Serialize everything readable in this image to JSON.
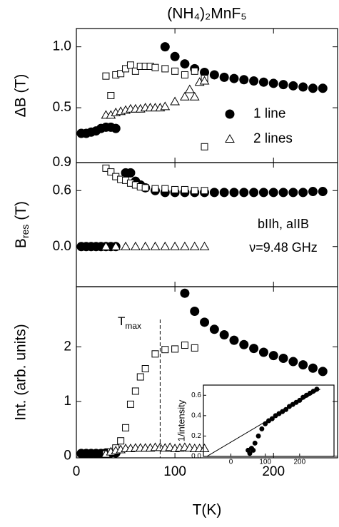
{
  "chart_data": [
    {
      "type": "scatter",
      "title": "(NH₄)₂MnF₅",
      "ylabel": "ΔB (T)",
      "xlim": [
        0,
        265
      ],
      "xticks": [
        0,
        100,
        200
      ],
      "ylim": [
        0.05,
        1.15
      ],
      "yticks": [
        0.5,
        {
          "value": 1.0,
          "label": "1.0"
        }
      ],
      "legend": "right",
      "series": [
        {
          "name": "1 line",
          "marker": "circle",
          "filled": true,
          "color": "#000000",
          "x": [
            5,
            10,
            15,
            20,
            25,
            30,
            35,
            40,
            90,
            100,
            110,
            120,
            130,
            140,
            150,
            160,
            170,
            180,
            190,
            200,
            210,
            220,
            230,
            240,
            250
          ],
          "values": [
            0.29,
            0.29,
            0.3,
            0.31,
            0.33,
            0.34,
            0.34,
            0.33,
            1.0,
            0.92,
            0.86,
            0.82,
            0.79,
            0.77,
            0.75,
            0.74,
            0.73,
            0.72,
            0.71,
            0.7,
            0.69,
            0.68,
            0.67,
            0.66,
            0.66
          ]
        },
        {
          "marker": "square",
          "filled": false,
          "color": "#000000",
          "x": [
            30,
            35,
            40,
            45,
            50,
            55,
            60,
            65,
            70,
            75,
            80,
            90,
            100,
            110,
            120,
            130,
            130
          ],
          "values": [
            0.76,
            0.6,
            0.77,
            0.78,
            0.82,
            0.85,
            0.8,
            0.84,
            0.84,
            0.84,
            0.83,
            0.82,
            0.8,
            0.77,
            0.8,
            0.74,
            0.18
          ]
        },
        {
          "name": "2 lines",
          "marker": "triangle",
          "filled": false,
          "color": "#000000",
          "x": [
            30,
            35,
            40,
            45,
            50,
            55,
            60,
            65,
            70,
            75,
            80,
            85,
            90,
            100,
            110,
            115,
            120,
            125,
            130
          ],
          "values": [
            0.44,
            0.44,
            0.46,
            0.47,
            0.48,
            0.49,
            0.49,
            0.49,
            0.5,
            0.5,
            0.5,
            0.5,
            0.51,
            0.55,
            0.59,
            0.65,
            0.59,
            0.71,
            0.72
          ]
        }
      ]
    },
    {
      "type": "scatter",
      "ylabel": {
        "text": "B",
        "sub": "res",
        "unit": " (T)"
      },
      "annotations": [
        "bIIh, aIIB",
        "ν=9.48 GHz"
      ],
      "xlim": [
        0,
        265
      ],
      "xticks": [
        0,
        100,
        200
      ],
      "ylim": [
        -0.43,
        0.9
      ],
      "yticks": [
        {
          "value": 0,
          "label": "0.0"
        },
        0.6,
        0.9
      ],
      "series": [
        {
          "marker": "circle",
          "filled": true,
          "color": "#000000",
          "x": [
            5,
            10,
            15,
            20,
            25,
            30,
            35,
            40,
            50,
            55,
            60,
            65,
            70,
            80,
            90,
            100,
            110,
            120,
            130,
            140,
            150,
            160,
            170,
            180,
            190,
            200,
            210,
            220,
            230,
            240,
            250
          ],
          "values": [
            0,
            0,
            0,
            0,
            0,
            0,
            0,
            0,
            0.79,
            0.79,
            0.7,
            0.66,
            0.63,
            0.6,
            0.58,
            0.58,
            0.58,
            0.58,
            0.58,
            0.58,
            0.58,
            0.58,
            0.58,
            0.58,
            0.58,
            0.58,
            0.58,
            0.58,
            0.58,
            0.59,
            0.59
          ]
        },
        {
          "marker": "square",
          "filled": false,
          "color": "#000000",
          "x": [
            30,
            35,
            40,
            45,
            50,
            55,
            60,
            65,
            70,
            80,
            90,
            100,
            110,
            120,
            130
          ],
          "values": [
            0.84,
            0.8,
            0.75,
            0.72,
            0.71,
            0.68,
            0.66,
            0.64,
            0.63,
            0.62,
            0.62,
            0.61,
            0.61,
            0.6,
            0.6
          ]
        },
        {
          "marker": "triangle",
          "filled": false,
          "color": "#000000",
          "x": [
            30,
            40,
            50,
            60,
            70,
            80,
            90,
            100,
            110,
            120,
            130
          ],
          "values": [
            0,
            0,
            0,
            0,
            0,
            0,
            0,
            0,
            0,
            0,
            0
          ]
        }
      ]
    },
    {
      "type": "scatter",
      "ylabel": "Int. (arb. units)",
      "xlabel": "T(K)",
      "annotation": {
        "text": "T",
        "sub": "max",
        "x": 85
      },
      "xlim": [
        0,
        265
      ],
      "xticks": [
        0,
        100,
        200
      ],
      "ylim": [
        -0.03,
        3.1
      ],
      "yticks": [
        0,
        1,
        2
      ],
      "series": [
        {
          "marker": "circle",
          "filled": true,
          "color": "#000000",
          "x": [
            5,
            10,
            15,
            20,
            25,
            30,
            35,
            40,
            110,
            120,
            130,
            140,
            150,
            160,
            170,
            180,
            190,
            200,
            210,
            220,
            230,
            240,
            250
          ],
          "values": [
            0.05,
            0.05,
            0.05,
            0.05,
            0.05,
            0.06,
            0.06,
            0.06,
            2.98,
            2.65,
            2.45,
            2.32,
            2.22,
            2.12,
            2.04,
            1.97,
            1.9,
            1.84,
            1.79,
            1.73,
            1.67,
            1.61,
            1.55
          ]
        },
        {
          "marker": "square",
          "filled": false,
          "color": "#000000",
          "x": [
            30,
            35,
            40,
            45,
            50,
            55,
            60,
            65,
            70,
            80,
            90,
            100,
            110,
            120
          ],
          "values": [
            0.04,
            0.08,
            0.15,
            0.28,
            0.52,
            0.95,
            1.19,
            1.45,
            1.6,
            1.87,
            1.95,
            1.96,
            2.03,
            1.98
          ]
        },
        {
          "marker": "triangle",
          "filled": false,
          "color": "#000000",
          "x": [
            30,
            35,
            40,
            45,
            50,
            55,
            60,
            65,
            70,
            75,
            80,
            85,
            90,
            95,
            100,
            105,
            110,
            115,
            120,
            125,
            130
          ],
          "values": [
            0.04,
            0.08,
            0.1,
            0.12,
            0.14,
            0.14,
            0.15,
            0.15,
            0.15,
            0.15,
            0.16,
            0.16,
            0.15,
            0.16,
            0.14,
            0.15,
            0.16,
            0.15,
            0.14,
            0.14,
            0.14
          ]
        }
      ]
    },
    {
      "type": "scatter",
      "ylabel": "1/intensity",
      "xlim": [
        -80,
        300
      ],
      "xticks": [
        0,
        100,
        200
      ],
      "ylim": [
        0,
        0.7
      ],
      "yticks": [
        {
          "value": 0,
          "label": "0.0"
        },
        0.2,
        0.4,
        0.6
      ],
      "series": [
        {
          "marker": "circle",
          "filled": true,
          "color": "#000000",
          "x": [
            50,
            55,
            60,
            65,
            70,
            80,
            90,
            100,
            110,
            120,
            130,
            140,
            150,
            160,
            170,
            180,
            190,
            200,
            210,
            220,
            230,
            240,
            250
          ],
          "values": [
            0.06,
            0.03,
            0.08,
            0.06,
            0.13,
            0.2,
            0.27,
            0.32,
            0.35,
            0.37,
            0.4,
            0.42,
            0.44,
            0.46,
            0.49,
            0.51,
            0.53,
            0.55,
            0.58,
            0.6,
            0.62,
            0.64,
            0.66
          ]
        },
        {
          "marker": "line",
          "color": "#000000",
          "x": [
            -70,
            260
          ],
          "values": [
            0,
            0.66
          ]
        }
      ]
    }
  ]
}
